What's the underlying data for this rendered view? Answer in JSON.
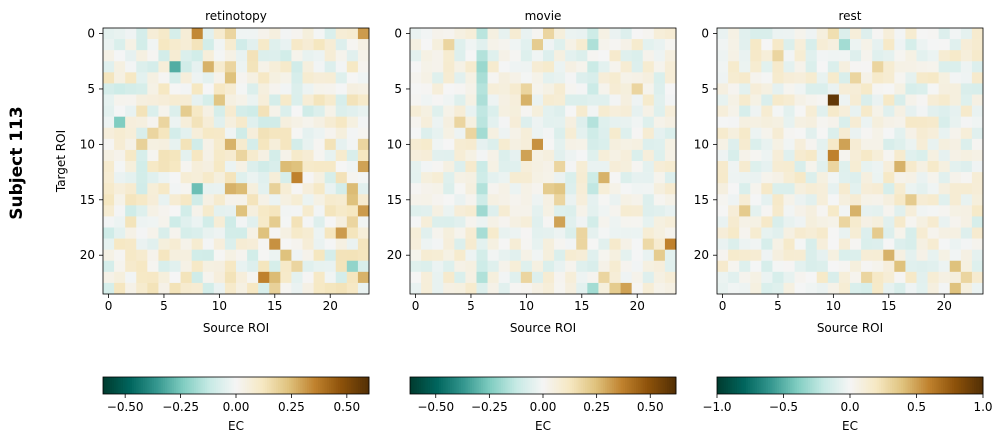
{
  "figure_label": "Subject 113",
  "chart_data": [
    {
      "type": "heatmap",
      "title": "retinotopy",
      "xlabel": "Source ROI",
      "ylabel": "Target ROI",
      "n": 24,
      "x_ticks": [
        0,
        5,
        10,
        15,
        20
      ],
      "y_ticks": [
        0,
        5,
        10,
        15,
        20
      ],
      "colorbar": {
        "label": "EC",
        "vmin": -0.6,
        "vmax": 0.6,
        "ticks": [
          -0.5,
          -0.25,
          0.0,
          0.25,
          0.5
        ],
        "tick_labels": [
          "−0.50",
          "−0.25",
          "0.00",
          "0.25",
          "0.50"
        ]
      },
      "colormap": "BrBG_r",
      "amp": 0.6,
      "seed": 11,
      "sigma": 0.2,
      "strong": [
        [
          0,
          8,
          0.58
        ],
        [
          0,
          23,
          0.52
        ],
        [
          0,
          11,
          0.3
        ],
        [
          3,
          6,
          -0.52
        ],
        [
          3,
          9,
          0.45
        ],
        [
          3,
          11,
          0.3
        ],
        [
          4,
          11,
          0.4
        ],
        [
          6,
          10,
          0.38
        ],
        [
          7,
          7,
          0.35
        ],
        [
          8,
          1,
          -0.4
        ],
        [
          8,
          5,
          0.3
        ],
        [
          9,
          4,
          0.3
        ],
        [
          10,
          3,
          0.32
        ],
        [
          10,
          11,
          0.45
        ],
        [
          11,
          12,
          0.3
        ],
        [
          10,
          23,
          0.3
        ],
        [
          12,
          17,
          0.4
        ],
        [
          12,
          16,
          0.42
        ],
        [
          12,
          23,
          0.5
        ],
        [
          13,
          17,
          0.6
        ],
        [
          14,
          8,
          -0.45
        ],
        [
          14,
          11,
          0.45
        ],
        [
          14,
          12,
          0.42
        ],
        [
          14,
          15,
          0.32
        ],
        [
          14,
          22,
          0.42
        ],
        [
          15,
          22,
          0.4
        ],
        [
          16,
          12,
          0.4
        ],
        [
          16,
          23,
          0.52
        ],
        [
          17,
          15,
          0.35
        ],
        [
          17,
          22,
          0.3
        ],
        [
          18,
          14,
          0.4
        ],
        [
          18,
          21,
          0.52
        ],
        [
          19,
          15,
          0.55
        ],
        [
          20,
          16,
          0.4
        ],
        [
          21,
          17,
          0.3
        ],
        [
          21,
          22,
          -0.35
        ],
        [
          22,
          14,
          0.6
        ],
        [
          22,
          15,
          0.42
        ],
        [
          22,
          23,
          0.45
        ],
        [
          23,
          15,
          0.32
        ]
      ]
    },
    {
      "type": "heatmap",
      "title": "movie",
      "xlabel": "Source ROI",
      "ylabel": "",
      "n": 24,
      "x_ticks": [
        0,
        5,
        10,
        15,
        20
      ],
      "y_ticks": [
        0,
        5,
        10,
        15,
        20
      ],
      "colorbar": {
        "label": "EC",
        "vmin": -0.62,
        "vmax": 0.62,
        "ticks": [
          -0.5,
          -0.25,
          0.0,
          0.25,
          0.5
        ],
        "tick_labels": [
          "−0.50",
          "−0.25",
          "0.00",
          "0.25",
          "0.50"
        ]
      },
      "colormap": "BrBG_r",
      "amp": 0.62,
      "seed": 23,
      "sigma": 0.14,
      "column_bias": [
        [
          6,
          -0.2
        ],
        [
          16,
          -0.15
        ]
      ],
      "strong": [
        [
          0,
          12,
          0.3
        ],
        [
          1,
          3,
          0.3
        ],
        [
          1,
          11,
          0.35
        ],
        [
          5,
          10,
          0.3
        ],
        [
          5,
          20,
          0.3
        ],
        [
          6,
          10,
          0.45
        ],
        [
          8,
          4,
          0.3
        ],
        [
          9,
          6,
          -0.3
        ],
        [
          9,
          5,
          0.3
        ],
        [
          11,
          10,
          0.5
        ],
        [
          10,
          11,
          0.55
        ],
        [
          12,
          13,
          0.3
        ],
        [
          13,
          17,
          0.45
        ],
        [
          14,
          12,
          0.35
        ],
        [
          14,
          13,
          0.38
        ],
        [
          15,
          13,
          0.3
        ],
        [
          17,
          13,
          0.5
        ],
        [
          18,
          15,
          0.3
        ],
        [
          19,
          15,
          0.3
        ],
        [
          19,
          21,
          0.28
        ],
        [
          19,
          23,
          0.6
        ],
        [
          20,
          22,
          0.35
        ],
        [
          22,
          17,
          0.3
        ],
        [
          23,
          16,
          -0.3
        ],
        [
          23,
          18,
          0.35
        ],
        [
          23,
          19,
          0.5
        ],
        [
          22,
          10,
          0.3
        ]
      ]
    },
    {
      "type": "heatmap",
      "title": "rest",
      "xlabel": "Source ROI",
      "ylabel": "",
      "n": 24,
      "x_ticks": [
        0,
        5,
        10,
        15,
        20
      ],
      "y_ticks": [
        0,
        5,
        10,
        15,
        20
      ],
      "colorbar": {
        "label": "EC",
        "vmin": -1.0,
        "vmax": 1.0,
        "ticks": [
          -1.0,
          -0.5,
          0.0,
          0.5,
          1.0
        ],
        "tick_labels": [
          "−1.0",
          "−0.5",
          "0.0",
          "0.5",
          "1.0"
        ]
      },
      "colormap": "BrBG_r",
      "amp": 1.0,
      "seed": 37,
      "sigma": 0.16,
      "strong": [
        [
          6,
          10,
          0.95
        ],
        [
          11,
          10,
          0.6
        ],
        [
          10,
          11,
          0.5
        ],
        [
          12,
          16,
          0.45
        ],
        [
          15,
          17,
          0.35
        ],
        [
          16,
          2,
          0.35
        ],
        [
          16,
          12,
          0.45
        ],
        [
          17,
          11,
          0.3
        ],
        [
          18,
          14,
          0.35
        ],
        [
          20,
          15,
          0.45
        ],
        [
          21,
          16,
          0.4
        ],
        [
          21,
          21,
          0.4
        ],
        [
          22,
          13,
          0.3
        ],
        [
          22,
          22,
          0.3
        ],
        [
          23,
          21,
          0.4
        ],
        [
          2,
          5,
          0.3
        ],
        [
          3,
          14,
          0.3
        ],
        [
          1,
          11,
          -0.3
        ],
        [
          4,
          12,
          0.3
        ],
        [
          0,
          10,
          0.25
        ],
        [
          12,
          10,
          0.3
        ]
      ]
    }
  ]
}
